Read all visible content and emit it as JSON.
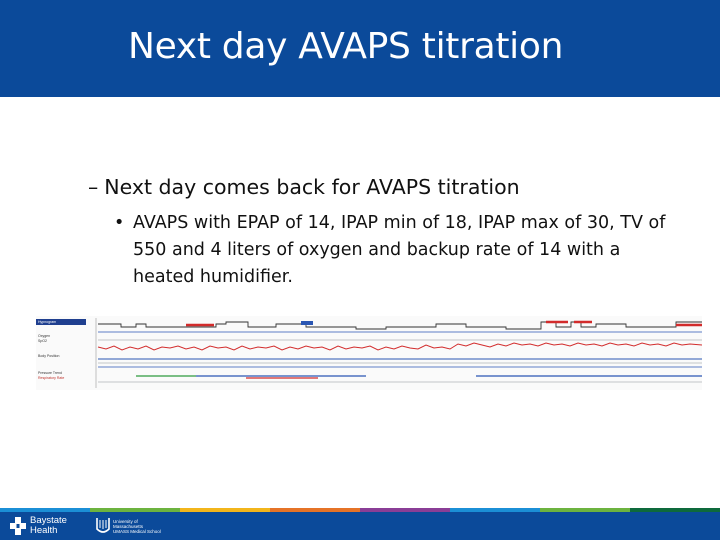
{
  "slide": {
    "title": "Next day AVAPS titration",
    "bullet_l1_marker": "–",
    "bullet_l1": "Next day comes back for AVAPS titration",
    "bullet_l2_marker": "•",
    "bullet_l2": "AVAPS with EPAP of 14, IPAP min of 18, IPAP max of 30, TV of 550 and 4 liters of oxygen and backup rate of 14 with a heated humidifier."
  },
  "study_panel": {
    "header_label": "Hypnogram",
    "labels": [
      "Oxygen",
      "SpO2",
      "Body Position",
      "Pressure Trend",
      "Respiratory Rate"
    ],
    "colors": {
      "red_trace": "#d22b2b",
      "blue_trace": "#2a56b3",
      "green_trace": "#2e9a3e",
      "gray_trace": "#8a8f96",
      "dark_trace": "#333333"
    }
  },
  "footer": {
    "logo_a_line1": "Baystate",
    "logo_a_line2": "Health",
    "logo_b_line1": "University of",
    "logo_b_line2": "Massachusetts",
    "logo_b_line3": "UMASS Medical School",
    "colors": {
      "bar": "#0b4a9a",
      "strip": [
        "#1b8fd6",
        "#6cb33f",
        "#f2b51b",
        "#e57327",
        "#8a3e96",
        "#1b8fd6",
        "#6cb33f",
        "#0e6a3c"
      ]
    }
  }
}
